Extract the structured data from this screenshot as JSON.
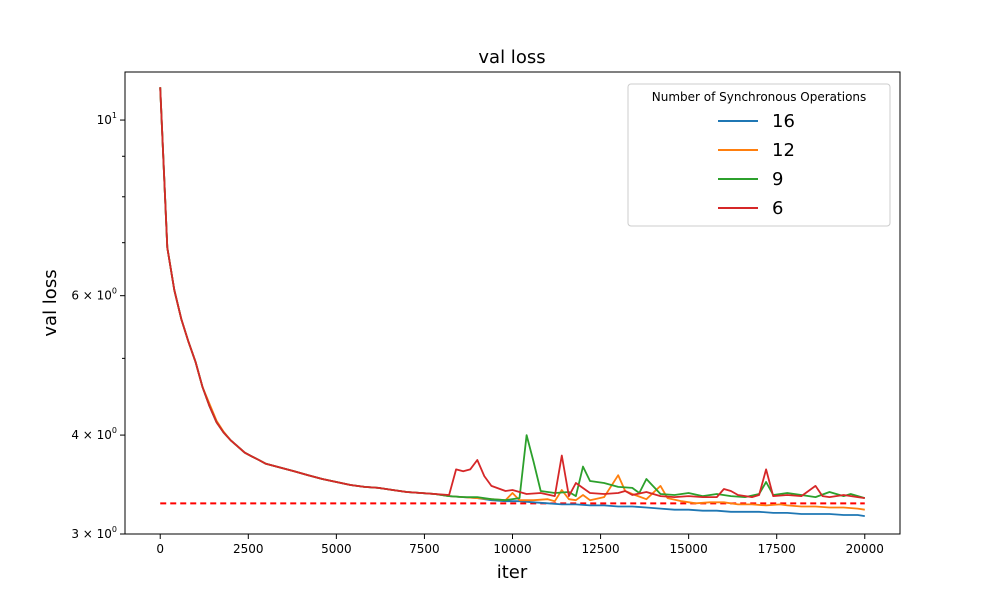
{
  "chart_data": {
    "type": "line",
    "title": "val loss",
    "xlabel": "iter",
    "ylabel": "val loss",
    "yscale": "log",
    "xlim": [
      -1000,
      21000
    ],
    "ylim": [
      3.0,
      11.5
    ],
    "x_ticks": [
      0,
      2500,
      5000,
      7500,
      10000,
      12500,
      15000,
      17500,
      20000
    ],
    "x_tick_labels": [
      "0",
      "2500",
      "5000",
      "7500",
      "10000",
      "12500",
      "15000",
      "17500",
      "20000"
    ],
    "y_major_ticks": [
      {
        "value": 3,
        "mantissa": "3",
        "exp": "0"
      },
      {
        "value": 4,
        "mantissa": "4",
        "exp": "0"
      },
      {
        "value": 6,
        "mantissa": "6",
        "exp": "0"
      },
      {
        "value": 10,
        "mantissa": "10",
        "exp": "1"
      }
    ],
    "y_minor_ticks": [
      5,
      7,
      8,
      9
    ],
    "grid": false,
    "legend": {
      "title": "Number of Synchronous Operations",
      "placement": "top-right"
    },
    "reference_line": {
      "y": 3.28,
      "x_range": [
        0,
        20000
      ],
      "color": "#ff0000",
      "style": "dashed"
    },
    "series": [
      {
        "name": "16",
        "color": "#1f77b4",
        "points": [
          [
            0,
            11.0
          ],
          [
            200,
            6.9
          ],
          [
            400,
            6.1
          ],
          [
            600,
            5.6
          ],
          [
            800,
            5.25
          ],
          [
            1000,
            4.95
          ],
          [
            1200,
            4.6
          ],
          [
            1400,
            4.35
          ],
          [
            1600,
            4.15
          ],
          [
            1800,
            4.03
          ],
          [
            2000,
            3.94
          ],
          [
            2200,
            3.87
          ],
          [
            2400,
            3.8
          ],
          [
            2600,
            3.76
          ],
          [
            2800,
            3.72
          ],
          [
            3000,
            3.68
          ],
          [
            3400,
            3.64
          ],
          [
            3800,
            3.6
          ],
          [
            4200,
            3.56
          ],
          [
            4600,
            3.52
          ],
          [
            5000,
            3.49
          ],
          [
            5400,
            3.46
          ],
          [
            5800,
            3.44
          ],
          [
            6200,
            3.43
          ],
          [
            6600,
            3.41
          ],
          [
            7000,
            3.39
          ],
          [
            7400,
            3.38
          ],
          [
            7800,
            3.37
          ],
          [
            8200,
            3.35
          ],
          [
            8600,
            3.34
          ],
          [
            9000,
            3.33
          ],
          [
            9400,
            3.31
          ],
          [
            9800,
            3.3
          ],
          [
            10200,
            3.3
          ],
          [
            10600,
            3.29
          ],
          [
            11000,
            3.28
          ],
          [
            11400,
            3.27
          ],
          [
            11800,
            3.27
          ],
          [
            12200,
            3.26
          ],
          [
            12600,
            3.26
          ],
          [
            13000,
            3.25
          ],
          [
            13400,
            3.25
          ],
          [
            13800,
            3.24
          ],
          [
            14200,
            3.23
          ],
          [
            14600,
            3.22
          ],
          [
            15000,
            3.22
          ],
          [
            15400,
            3.21
          ],
          [
            15800,
            3.21
          ],
          [
            16200,
            3.2
          ],
          [
            16600,
            3.2
          ],
          [
            17000,
            3.2
          ],
          [
            17400,
            3.19
          ],
          [
            17800,
            3.19
          ],
          [
            18200,
            3.18
          ],
          [
            18600,
            3.18
          ],
          [
            19000,
            3.18
          ],
          [
            19400,
            3.17
          ],
          [
            19800,
            3.17
          ],
          [
            20000,
            3.16
          ]
        ]
      },
      {
        "name": "12",
        "color": "#ff7f0e",
        "points": [
          [
            0,
            11.0
          ],
          [
            200,
            6.9
          ],
          [
            400,
            6.1
          ],
          [
            600,
            5.6
          ],
          [
            800,
            5.25
          ],
          [
            1000,
            4.95
          ],
          [
            1200,
            4.6
          ],
          [
            1400,
            4.38
          ],
          [
            1600,
            4.17
          ],
          [
            1800,
            4.04
          ],
          [
            2000,
            3.94
          ],
          [
            2200,
            3.87
          ],
          [
            2400,
            3.8
          ],
          [
            2600,
            3.76
          ],
          [
            2800,
            3.72
          ],
          [
            3000,
            3.68
          ],
          [
            3400,
            3.64
          ],
          [
            3800,
            3.6
          ],
          [
            4200,
            3.56
          ],
          [
            4600,
            3.52
          ],
          [
            5000,
            3.49
          ],
          [
            5400,
            3.46
          ],
          [
            5800,
            3.44
          ],
          [
            6200,
            3.43
          ],
          [
            6600,
            3.41
          ],
          [
            7000,
            3.39
          ],
          [
            7400,
            3.38
          ],
          [
            7800,
            3.37
          ],
          [
            8200,
            3.35
          ],
          [
            8600,
            3.34
          ],
          [
            9000,
            3.33
          ],
          [
            9400,
            3.32
          ],
          [
            9800,
            3.31
          ],
          [
            10000,
            3.38
          ],
          [
            10200,
            3.31
          ],
          [
            10600,
            3.31
          ],
          [
            11000,
            3.32
          ],
          [
            11200,
            3.3
          ],
          [
            11400,
            3.41
          ],
          [
            11600,
            3.32
          ],
          [
            11800,
            3.31
          ],
          [
            12000,
            3.36
          ],
          [
            12200,
            3.31
          ],
          [
            12600,
            3.34
          ],
          [
            13000,
            3.56
          ],
          [
            13200,
            3.4
          ],
          [
            13400,
            3.37
          ],
          [
            13800,
            3.32
          ],
          [
            14200,
            3.45
          ],
          [
            14400,
            3.33
          ],
          [
            14800,
            3.3
          ],
          [
            15200,
            3.28
          ],
          [
            15600,
            3.29
          ],
          [
            16000,
            3.29
          ],
          [
            16400,
            3.27
          ],
          [
            16800,
            3.27
          ],
          [
            17200,
            3.26
          ],
          [
            17600,
            3.27
          ],
          [
            17800,
            3.26
          ],
          [
            18200,
            3.25
          ],
          [
            18600,
            3.25
          ],
          [
            19000,
            3.24
          ],
          [
            19400,
            3.24
          ],
          [
            19800,
            3.23
          ],
          [
            20000,
            3.22
          ]
        ]
      },
      {
        "name": "9",
        "color": "#2ca02c",
        "points": [
          [
            0,
            11.0
          ],
          [
            200,
            6.9
          ],
          [
            400,
            6.1
          ],
          [
            600,
            5.6
          ],
          [
            800,
            5.25
          ],
          [
            1000,
            4.95
          ],
          [
            1200,
            4.6
          ],
          [
            1400,
            4.35
          ],
          [
            1600,
            4.15
          ],
          [
            1800,
            4.03
          ],
          [
            2000,
            3.94
          ],
          [
            2200,
            3.87
          ],
          [
            2400,
            3.8
          ],
          [
            2600,
            3.76
          ],
          [
            2800,
            3.72
          ],
          [
            3000,
            3.68
          ],
          [
            3400,
            3.64
          ],
          [
            3800,
            3.6
          ],
          [
            4200,
            3.56
          ],
          [
            4600,
            3.52
          ],
          [
            5000,
            3.49
          ],
          [
            5400,
            3.46
          ],
          [
            5800,
            3.44
          ],
          [
            6200,
            3.43
          ],
          [
            6600,
            3.41
          ],
          [
            7000,
            3.39
          ],
          [
            7400,
            3.38
          ],
          [
            7800,
            3.37
          ],
          [
            8200,
            3.35
          ],
          [
            8600,
            3.34
          ],
          [
            9000,
            3.34
          ],
          [
            9400,
            3.32
          ],
          [
            9800,
            3.31
          ],
          [
            10200,
            3.33
          ],
          [
            10400,
            4.0
          ],
          [
            10600,
            3.7
          ],
          [
            10800,
            3.4
          ],
          [
            11200,
            3.38
          ],
          [
            11600,
            3.39
          ],
          [
            11800,
            3.35
          ],
          [
            12000,
            3.65
          ],
          [
            12200,
            3.5
          ],
          [
            12600,
            3.48
          ],
          [
            13000,
            3.44
          ],
          [
            13400,
            3.43
          ],
          [
            13600,
            3.38
          ],
          [
            13800,
            3.52
          ],
          [
            14200,
            3.37
          ],
          [
            14600,
            3.36
          ],
          [
            15000,
            3.38
          ],
          [
            15400,
            3.35
          ],
          [
            15800,
            3.37
          ],
          [
            16200,
            3.35
          ],
          [
            16600,
            3.34
          ],
          [
            17000,
            3.37
          ],
          [
            17200,
            3.49
          ],
          [
            17400,
            3.36
          ],
          [
            17800,
            3.38
          ],
          [
            18200,
            3.36
          ],
          [
            18600,
            3.34
          ],
          [
            19000,
            3.39
          ],
          [
            19400,
            3.35
          ],
          [
            19600,
            3.37
          ],
          [
            20000,
            3.33
          ]
        ]
      },
      {
        "name": "6",
        "color": "#d62728",
        "points": [
          [
            0,
            11.0
          ],
          [
            200,
            6.9
          ],
          [
            400,
            6.1
          ],
          [
            600,
            5.6
          ],
          [
            800,
            5.25
          ],
          [
            1000,
            4.95
          ],
          [
            1200,
            4.6
          ],
          [
            1400,
            4.35
          ],
          [
            1600,
            4.15
          ],
          [
            1800,
            4.03
          ],
          [
            2000,
            3.94
          ],
          [
            2200,
            3.87
          ],
          [
            2400,
            3.8
          ],
          [
            2600,
            3.76
          ],
          [
            2800,
            3.72
          ],
          [
            3000,
            3.68
          ],
          [
            3400,
            3.64
          ],
          [
            3800,
            3.6
          ],
          [
            4200,
            3.56
          ],
          [
            4600,
            3.52
          ],
          [
            5000,
            3.49
          ],
          [
            5400,
            3.46
          ],
          [
            5800,
            3.44
          ],
          [
            6200,
            3.43
          ],
          [
            6600,
            3.41
          ],
          [
            7000,
            3.39
          ],
          [
            7400,
            3.38
          ],
          [
            7800,
            3.37
          ],
          [
            8200,
            3.36
          ],
          [
            8400,
            3.62
          ],
          [
            8600,
            3.6
          ],
          [
            8800,
            3.62
          ],
          [
            9000,
            3.72
          ],
          [
            9200,
            3.55
          ],
          [
            9400,
            3.45
          ],
          [
            9800,
            3.4
          ],
          [
            10000,
            3.41
          ],
          [
            10400,
            3.37
          ],
          [
            10800,
            3.38
          ],
          [
            11200,
            3.35
          ],
          [
            11400,
            3.77
          ],
          [
            11600,
            3.35
          ],
          [
            11800,
            3.48
          ],
          [
            12200,
            3.38
          ],
          [
            12600,
            3.37
          ],
          [
            13000,
            3.38
          ],
          [
            13200,
            3.4
          ],
          [
            13400,
            3.36
          ],
          [
            13800,
            3.39
          ],
          [
            14200,
            3.35
          ],
          [
            14600,
            3.34
          ],
          [
            15000,
            3.35
          ],
          [
            15400,
            3.34
          ],
          [
            15800,
            3.34
          ],
          [
            16000,
            3.42
          ],
          [
            16200,
            3.4
          ],
          [
            16400,
            3.36
          ],
          [
            16800,
            3.34
          ],
          [
            17000,
            3.36
          ],
          [
            17200,
            3.62
          ],
          [
            17400,
            3.35
          ],
          [
            17800,
            3.36
          ],
          [
            18200,
            3.35
          ],
          [
            18600,
            3.45
          ],
          [
            18800,
            3.35
          ],
          [
            19000,
            3.34
          ],
          [
            19400,
            3.36
          ],
          [
            19800,
            3.34
          ],
          [
            20000,
            3.33
          ]
        ]
      }
    ]
  }
}
